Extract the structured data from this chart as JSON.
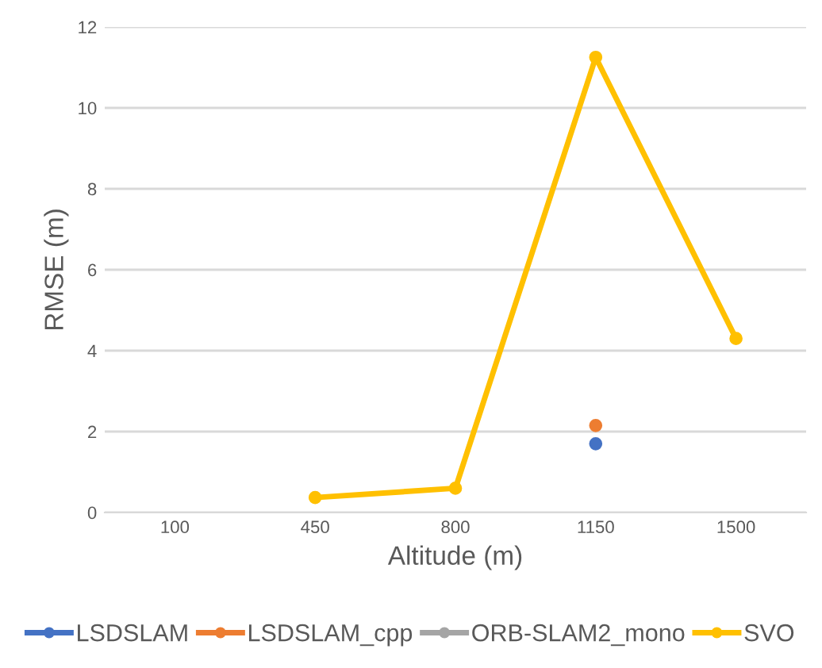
{
  "chart_data": {
    "type": "line",
    "xlabel": "Altitude (m)",
    "ylabel": "RMSE (m)",
    "categories": [
      "100",
      "450",
      "800",
      "1150",
      "1500"
    ],
    "series": [
      {
        "name": "LSDSLAM",
        "color": "#4472c4",
        "values": [
          null,
          null,
          null,
          1.7,
          null
        ]
      },
      {
        "name": "LSDSLAM_cpp",
        "color": "#ed7d31",
        "values": [
          null,
          null,
          null,
          2.15,
          null
        ]
      },
      {
        "name": "ORB-SLAM2_mono",
        "color": "#a5a5a5",
        "values": [
          null,
          null,
          null,
          null,
          null
        ]
      },
      {
        "name": "SVO",
        "color": "#ffc000",
        "values": [
          null,
          0.37,
          0.6,
          11.25,
          4.3
        ]
      }
    ],
    "ylim": [
      0,
      12
    ],
    "yticks": [
      0,
      2,
      4,
      6,
      8,
      10,
      12
    ],
    "grid": "y",
    "legend": "bottom",
    "marker": "circle",
    "line_style": "solid"
  }
}
